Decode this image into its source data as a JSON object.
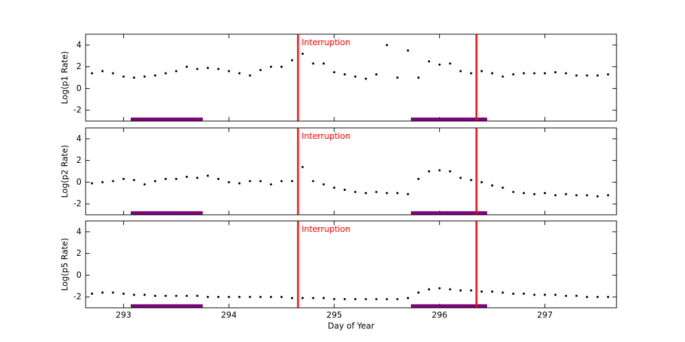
{
  "chart_data": [
    {
      "type": "scatter",
      "ylabel": "Log(p1 Rate)",
      "color": "#000000",
      "x": [
        292.7,
        292.8,
        292.9,
        293.0,
        293.1,
        293.2,
        293.3,
        293.4,
        293.5,
        293.6,
        293.7,
        293.8,
        293.9,
        294.0,
        294.1,
        294.2,
        294.3,
        294.4,
        294.5,
        294.6,
        294.7,
        294.8,
        294.9,
        295.0,
        295.1,
        295.2,
        295.3,
        295.4,
        295.5,
        295.6,
        295.7,
        295.8,
        295.9,
        296.0,
        296.1,
        296.2,
        296.3,
        296.4,
        296.5,
        296.6,
        296.7,
        296.8,
        296.9,
        297.0,
        297.1,
        297.2,
        297.3,
        297.4,
        297.5,
        297.6
      ],
      "values": [
        1.4,
        1.6,
        1.4,
        1.1,
        1.0,
        1.1,
        1.2,
        1.4,
        1.6,
        2.0,
        1.8,
        1.9,
        1.8,
        1.6,
        1.4,
        1.2,
        1.7,
        2.0,
        2.0,
        2.6,
        3.2,
        2.3,
        2.3,
        1.5,
        1.3,
        1.1,
        0.9,
        1.3,
        4.0,
        1.0,
        3.5,
        1.0,
        2.5,
        2.2,
        2.3,
        1.6,
        1.4,
        1.6,
        1.4,
        1.1,
        1.3,
        1.4,
        1.4,
        1.4,
        1.5,
        1.4,
        1.2,
        1.2,
        1.2,
        1.3
      ],
      "xlim": [
        292.64,
        297.68
      ],
      "ylim": [
        -3,
        5
      ],
      "yticks": [
        -2,
        0,
        2,
        4
      ],
      "xticks": [
        293,
        294,
        295,
        296,
        297
      ],
      "show_xtick_labels": false,
      "vlines": [
        294.656,
        296.35
      ],
      "vline_color": "#ff0000",
      "annotation": {
        "text": "Interruption",
        "x": 294.69,
        "y": 4.2,
        "color": "#ff0000"
      },
      "spans": [
        [
          293.07,
          293.75
        ],
        [
          295.73,
          296.02
        ],
        [
          296.02,
          296.45
        ]
      ],
      "span_level": -2.85,
      "span_color": "#800080"
    },
    {
      "type": "scatter",
      "ylabel": "Log(p2 Rate)",
      "color": "#000000",
      "x": [
        292.7,
        292.8,
        292.9,
        293.0,
        293.1,
        293.2,
        293.3,
        293.4,
        293.5,
        293.6,
        293.7,
        293.8,
        293.9,
        294.0,
        294.1,
        294.2,
        294.3,
        294.4,
        294.5,
        294.6,
        294.7,
        294.8,
        294.9,
        295.0,
        295.1,
        295.2,
        295.3,
        295.4,
        295.5,
        295.6,
        295.7,
        295.8,
        295.9,
        296.0,
        296.1,
        296.2,
        296.3,
        296.4,
        296.5,
        296.6,
        296.7,
        296.8,
        296.9,
        297.0,
        297.1,
        297.2,
        297.3,
        297.4,
        297.5,
        297.6
      ],
      "values": [
        -0.1,
        0.0,
        0.1,
        0.3,
        0.2,
        -0.2,
        0.1,
        0.3,
        0.3,
        0.5,
        0.4,
        0.6,
        0.3,
        0.0,
        -0.1,
        0.1,
        0.1,
        -0.2,
        0.1,
        0.1,
        1.4,
        0.1,
        -0.2,
        -0.5,
        -0.7,
        -0.9,
        -1.0,
        -0.9,
        -1.0,
        -1.0,
        -1.1,
        0.3,
        1.0,
        1.1,
        1.0,
        0.4,
        0.2,
        0.0,
        -0.3,
        -0.5,
        -0.9,
        -1.0,
        -1.1,
        -1.0,
        -1.2,
        -1.1,
        -1.2,
        -1.2,
        -1.3,
        -1.2
      ],
      "xlim": [
        292.64,
        297.68
      ],
      "ylim": [
        -3,
        5
      ],
      "yticks": [
        -2,
        0,
        2,
        4
      ],
      "xticks": [
        293,
        294,
        295,
        296,
        297
      ],
      "show_xtick_labels": false,
      "vlines": [
        294.656,
        296.35
      ],
      "vline_color": "#ff0000",
      "annotation": {
        "text": "Interruption",
        "x": 294.69,
        "y": 4.2,
        "color": "#ff0000"
      },
      "spans": [
        [
          293.07,
          293.75
        ],
        [
          295.73,
          296.02
        ],
        [
          296.02,
          296.45
        ]
      ],
      "span_level": -2.85,
      "span_color": "#800080"
    },
    {
      "type": "scatter",
      "ylabel": "Log(p5 Rate)",
      "xlabel": "Day of Year",
      "color": "#000000",
      "x": [
        292.7,
        292.8,
        292.9,
        293.0,
        293.1,
        293.2,
        293.3,
        293.4,
        293.5,
        293.6,
        293.7,
        293.8,
        293.9,
        294.0,
        294.1,
        294.2,
        294.3,
        294.4,
        294.5,
        294.6,
        294.7,
        294.8,
        294.9,
        295.0,
        295.1,
        295.2,
        295.3,
        295.4,
        295.5,
        295.6,
        295.7,
        295.8,
        295.9,
        296.0,
        296.1,
        296.2,
        296.3,
        296.4,
        296.5,
        296.6,
        296.7,
        296.8,
        296.9,
        297.0,
        297.1,
        297.2,
        297.3,
        297.4,
        297.5,
        297.6
      ],
      "values": [
        -1.7,
        -1.6,
        -1.6,
        -1.7,
        -1.8,
        -1.8,
        -1.9,
        -1.9,
        -1.9,
        -1.9,
        -1.9,
        -2.0,
        -2.0,
        -2.0,
        -2.0,
        -2.0,
        -2.0,
        -2.0,
        -2.0,
        -2.1,
        -2.1,
        -2.1,
        -2.1,
        -2.2,
        -2.2,
        -2.2,
        -2.2,
        -2.2,
        -2.2,
        -2.2,
        -2.1,
        -1.6,
        -1.3,
        -1.2,
        -1.3,
        -1.4,
        -1.4,
        -1.5,
        -1.5,
        -1.6,
        -1.7,
        -1.7,
        -1.8,
        -1.8,
        -1.8,
        -1.9,
        -1.9,
        -2.0,
        -2.0,
        -2.0
      ],
      "xlim": [
        292.64,
        297.68
      ],
      "ylim": [
        -3,
        5
      ],
      "yticks": [
        -2,
        0,
        2,
        4
      ],
      "xticks": [
        293,
        294,
        295,
        296,
        297
      ],
      "show_xtick_labels": true,
      "vlines": [
        294.656,
        296.35
      ],
      "vline_color": "#ff0000",
      "annotation": {
        "text": "Interruption",
        "x": 294.69,
        "y": 4.2,
        "color": "#ff0000"
      },
      "spans": [
        [
          293.07,
          293.75
        ],
        [
          295.73,
          296.02
        ],
        [
          296.02,
          296.45
        ]
      ],
      "span_level": -2.85,
      "span_color": "#800080"
    }
  ]
}
